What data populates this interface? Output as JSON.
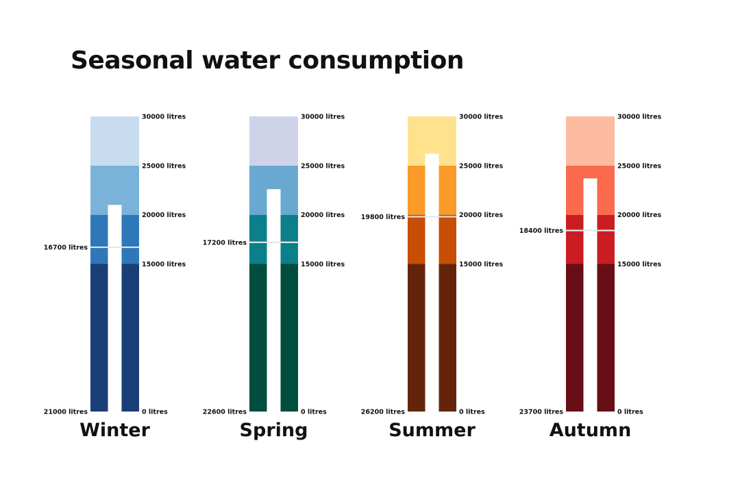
{
  "title": "Seasonal water consumption",
  "chart_data": {
    "type": "bullet",
    "unit": "litres",
    "ylim": [
      0,
      30000
    ],
    "band_thresholds": [
      0,
      15000,
      20000,
      25000,
      30000
    ],
    "tick_labels": [
      "30000 litres",
      "25000 litres",
      "20000 litres",
      "15000 litres",
      "0 litres"
    ],
    "seasons": [
      {
        "name": "Winter",
        "bar_value": 21000,
        "marker_value": 16700,
        "bar_label": "21000 litres",
        "marker_label": "16700 litres",
        "band_colors": [
          "#1a3e78",
          "#2e78b9",
          "#7ab3da",
          "#c8dcf0"
        ]
      },
      {
        "name": "Spring",
        "bar_value": 22600,
        "marker_value": 17200,
        "bar_label": "22600 litres",
        "marker_label": "17200 litres",
        "band_colors": [
          "#014d40",
          "#0b7f8a",
          "#69a8d1",
          "#ced3e9"
        ]
      },
      {
        "name": "Summer",
        "bar_value": 26200,
        "marker_value": 19800,
        "bar_label": "26200 litres",
        "marker_label": "19800 litres",
        "band_colors": [
          "#632409",
          "#c64f05",
          "#fa9a29",
          "#fee28e"
        ]
      },
      {
        "name": "Autumn",
        "bar_value": 23700,
        "marker_value": 18400,
        "bar_label": "23700 litres",
        "marker_label": "18400 litres",
        "band_colors": [
          "#680e16",
          "#ca1d21",
          "#fa6a4d",
          "#fdbba2"
        ]
      }
    ]
  }
}
